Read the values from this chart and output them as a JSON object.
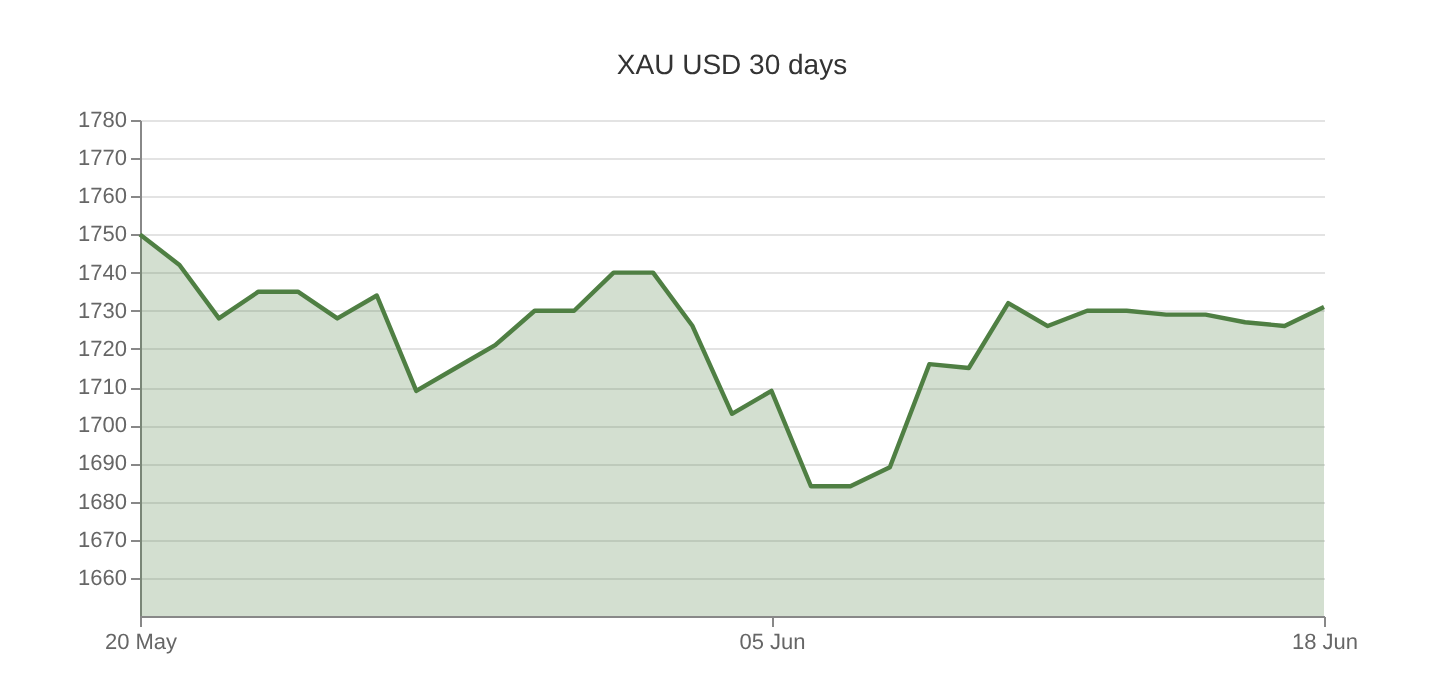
{
  "chart_data": {
    "type": "area",
    "title": "XAU USD 30 days",
    "categories": [
      "20 May",
      null,
      null,
      null,
      null,
      null,
      null,
      null,
      null,
      null,
      null,
      null,
      null,
      null,
      null,
      null,
      "05 Jun",
      null,
      null,
      null,
      null,
      null,
      null,
      null,
      null,
      null,
      null,
      null,
      null,
      null,
      "18 Jun"
    ],
    "series": [
      {
        "color": "#4f7f43",
        "values": [
          1750,
          1742,
          1728,
          1735,
          1735,
          1728,
          1734,
          1709,
          1715,
          1721,
          1730,
          1730,
          1740,
          1740,
          1726,
          1703,
          1709,
          1684,
          1684,
          1689,
          1716,
          1715,
          1732,
          1726,
          1730,
          1730,
          1729,
          1729,
          1727,
          1726,
          1731
        ]
      }
    ],
    "ylim": [
      1650,
      1780
    ],
    "yticks": [
      1660,
      1670,
      1680,
      1690,
      1700,
      1710,
      1720,
      1730,
      1740,
      1750,
      1760,
      1770,
      1780
    ],
    "grid": "y"
  }
}
